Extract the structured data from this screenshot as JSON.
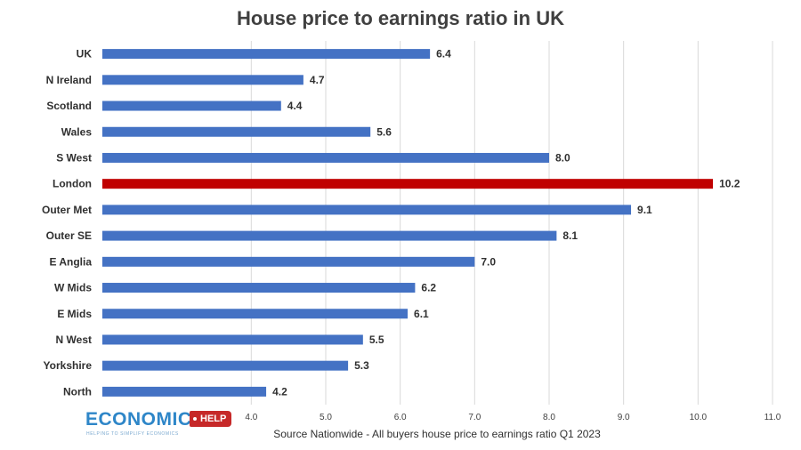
{
  "chart_data": {
    "type": "bar",
    "orientation": "horizontal",
    "title": "House price to earnings ratio in UK",
    "xlabel": "Source Nationwide - All buyers house price to earnings ratio  Q1 2023",
    "categories": [
      "UK",
      "N Ireland",
      "Scotland",
      "Wales",
      "S West",
      "London",
      "Outer Met",
      "Outer SE",
      "E Anglia",
      "W Mids",
      "E Mids",
      "N West",
      "Yorkshire",
      "North"
    ],
    "values": [
      6.4,
      4.7,
      4.4,
      5.6,
      8.0,
      10.2,
      9.1,
      8.1,
      7.0,
      6.2,
      6.1,
      5.5,
      5.3,
      4.2
    ],
    "value_labels": [
      "6.4",
      "4.7",
      "4.4",
      "5.6",
      "8.0",
      "10.2",
      "9.1",
      "8.1",
      "7.0",
      "6.2",
      "6.1",
      "5.5",
      "5.3",
      "4.2"
    ],
    "xticks": [
      4.0,
      5.0,
      6.0,
      7.0,
      8.0,
      9.0,
      10.0,
      11.0
    ],
    "xtick_labels": [
      "4.0",
      "5.0",
      "6.0",
      "7.0",
      "8.0",
      "9.0",
      "10.0",
      "11.0"
    ],
    "xlim": [
      2.0,
      11.0
    ],
    "grid": true,
    "legend": "none",
    "highlight_category": "London",
    "colors": {
      "bar": "#4472c4",
      "highlight": "#c00000",
      "grid": "#d9d9d9"
    }
  },
  "logo": {
    "word": "ECONOMICS",
    "tag": "HELP",
    "tagline": "HELPING TO SIMPLIFY ECONOMICS"
  }
}
